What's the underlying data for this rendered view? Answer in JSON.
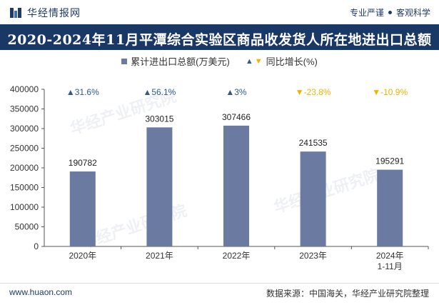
{
  "header": {
    "brand": "华经情报网",
    "tagline_left": "专业严谨",
    "tagline_right": "客观科学"
  },
  "title": "2020-2024年11月平潭综合实验区商品收发货人所在地进出口总额",
  "legend": {
    "series1": "累计进出口总额(万美元)",
    "series2": "同比增长(%)"
  },
  "footer": {
    "website": "www.huaon.com",
    "source": "数据来源：中国海关，华经产业研究院整理"
  },
  "watermark": "华经产业研究院",
  "colors": {
    "bar": "#6a7aa0",
    "up": "#2f5b88",
    "down": "#f0b400",
    "title_bg": "#1a3866"
  },
  "chart_data": {
    "type": "bar",
    "title": "2020-2024年11月平潭综合实验区商品收发货人所在地进出口总额",
    "categories": [
      "2020年",
      "2021年",
      "2022年",
      "2023年",
      "2024年\n1-11月"
    ],
    "series": [
      {
        "name": "累计进出口总额(万美元)",
        "values": [
          190782,
          303015,
          307466,
          241535,
          195291
        ]
      }
    ],
    "growth": {
      "name": "同比增长(%)",
      "labels": [
        "31.6%",
        "56.1%",
        "3%",
        "-23.8%",
        "-10.9%"
      ],
      "direction": [
        "up",
        "up",
        "up",
        "down",
        "down"
      ]
    },
    "ylim": [
      0,
      400000
    ],
    "yticks": [
      0,
      50000,
      100000,
      150000,
      200000,
      250000,
      300000,
      350000,
      400000
    ],
    "xlabel": "",
    "ylabel": "",
    "grid": false,
    "legend_position": "top-center"
  }
}
